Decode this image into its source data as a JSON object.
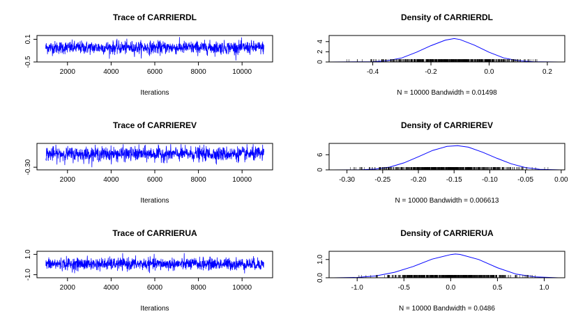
{
  "colors": {
    "series": "#0000ff",
    "axis": "#000000",
    "background": "#ffffff"
  },
  "chart_data": [
    {
      "id": "trace-dl",
      "type": "line",
      "title": "Trace of CARRIERDL",
      "xlabel": "Iterations",
      "x_range": [
        1001,
        11000
      ],
      "xlim": [
        601,
        11400
      ],
      "ylim": [
        -0.5,
        0.2
      ],
      "x_ticks": [
        2000,
        4000,
        6000,
        8000,
        10000
      ],
      "x_tick_labels": [
        "2000",
        "4000",
        "6000",
        "8000",
        "10000"
      ],
      "y_ticks": [
        -0.5,
        0.1
      ],
      "y_tick_labels": [
        "-0.5",
        "0.1"
      ],
      "series": [
        {
          "mean": -0.12,
          "sd": 0.085,
          "n_samples": 10000
        }
      ]
    },
    {
      "id": "density-dl",
      "type": "line",
      "title": "Density of CARRIERDL",
      "xlabel": "N = 10000   Bandwidth = 0.01498",
      "xlim": [
        -0.55,
        0.26
      ],
      "ylim": [
        0,
        5.2
      ],
      "x_ticks": [
        -0.4,
        -0.2,
        0.0,
        0.2
      ],
      "x_tick_labels": [
        "-0.4",
        "-0.2",
        "0.0",
        "0.2"
      ],
      "y_ticks": [
        0,
        2,
        4
      ],
      "y_tick_labels": [
        "0",
        "2",
        "4"
      ],
      "series": [
        {
          "x": [
            -0.55,
            -0.4,
            -0.35,
            -0.3,
            -0.25,
            -0.2,
            -0.15,
            -0.12,
            -0.1,
            -0.05,
            0.0,
            0.05,
            0.1,
            0.15,
            0.24
          ],
          "y": [
            0,
            0.05,
            0.25,
            0.8,
            1.9,
            3.2,
            4.3,
            4.6,
            4.4,
            3.3,
            1.9,
            0.8,
            0.25,
            0.05,
            0
          ]
        }
      ],
      "rug_range": [
        -0.5,
        0.24
      ]
    },
    {
      "id": "trace-ev",
      "type": "line",
      "title": "Trace of CARRIEREV",
      "xlabel": "Iterations",
      "x_range": [
        1001,
        11000
      ],
      "xlim": [
        601,
        11400
      ],
      "ylim": [
        -0.33,
        -0.03
      ],
      "x_ticks": [
        2000,
        4000,
        6000,
        8000,
        10000
      ],
      "x_tick_labels": [
        "2000",
        "4000",
        "6000",
        "8000",
        "10000"
      ],
      "y_ticks": [
        -0.3
      ],
      "y_tick_labels": [
        "-0.30"
      ],
      "series": [
        {
          "mean": -0.15,
          "sd": 0.04,
          "n_samples": 10000
        }
      ]
    },
    {
      "id": "density-ev",
      "type": "line",
      "title": "Density of CARRIEREV",
      "xlabel": "N = 10000   Bandwidth = 0.006613",
      "xlim": [
        -0.325,
        0.005
      ],
      "ylim": [
        0,
        10.5
      ],
      "x_ticks": [
        -0.3,
        -0.25,
        -0.2,
        -0.15,
        -0.1,
        -0.05,
        0.0
      ],
      "x_tick_labels": [
        "-0.30",
        "-0.25",
        "-0.20",
        "-0.15",
        "-0.10",
        "-0.05",
        "0.00"
      ],
      "y_ticks": [
        0,
        6
      ],
      "y_tick_labels": [
        "0",
        "6"
      ],
      "series": [
        {
          "x": [
            -0.32,
            -0.28,
            -0.26,
            -0.24,
            -0.22,
            -0.2,
            -0.18,
            -0.16,
            -0.145,
            -0.13,
            -0.11,
            -0.09,
            -0.07,
            -0.05,
            -0.03,
            0.0
          ],
          "y": [
            0,
            0.05,
            0.3,
            1.1,
            2.8,
            5.2,
            7.7,
            9.3,
            9.6,
            9.0,
            7.0,
            4.6,
            2.4,
            0.9,
            0.2,
            0
          ]
        }
      ],
      "rug_range": [
        -0.31,
        -0.01
      ]
    },
    {
      "id": "trace-ua",
      "type": "line",
      "title": "Trace of CARRIERUA",
      "xlabel": "Iterations",
      "x_range": [
        1001,
        11000
      ],
      "xlim": [
        601,
        11400
      ],
      "ylim": [
        -1.3,
        1.3
      ],
      "x_ticks": [
        2000,
        4000,
        6000,
        8000,
        10000
      ],
      "x_tick_labels": [
        "2000",
        "4000",
        "6000",
        "8000",
        "10000"
      ],
      "y_ticks": [
        -1.0,
        1.0
      ],
      "y_tick_labels": [
        "-1.0",
        "1.0"
      ],
      "series": [
        {
          "mean": 0.05,
          "sd": 0.3,
          "n_samples": 10000
        }
      ]
    },
    {
      "id": "density-ua",
      "type": "line",
      "title": "Density of CARRIERUA",
      "xlabel": "N = 10000   Bandwidth = 0.0486",
      "xlim": [
        -1.3,
        1.22
      ],
      "ylim": [
        0,
        1.45
      ],
      "x_ticks": [
        -1.0,
        -0.5,
        0.0,
        0.5,
        1.0
      ],
      "x_tick_labels": [
        "-1.0",
        "-0.5",
        "0.0",
        "0.5",
        "1.0"
      ],
      "y_ticks": [
        0,
        1.0
      ],
      "y_tick_labels": [
        "0.0",
        "1.0"
      ],
      "series": [
        {
          "x": [
            -1.25,
            -1.0,
            -0.8,
            -0.6,
            -0.4,
            -0.2,
            0.0,
            0.05,
            0.1,
            0.3,
            0.5,
            0.7,
            0.9,
            1.15
          ],
          "y": [
            0,
            0.02,
            0.1,
            0.3,
            0.62,
            1.02,
            1.27,
            1.3,
            1.28,
            1.0,
            0.55,
            0.2,
            0.05,
            0
          ]
        }
      ],
      "rug_range": [
        -1.0,
        1.0
      ]
    }
  ]
}
